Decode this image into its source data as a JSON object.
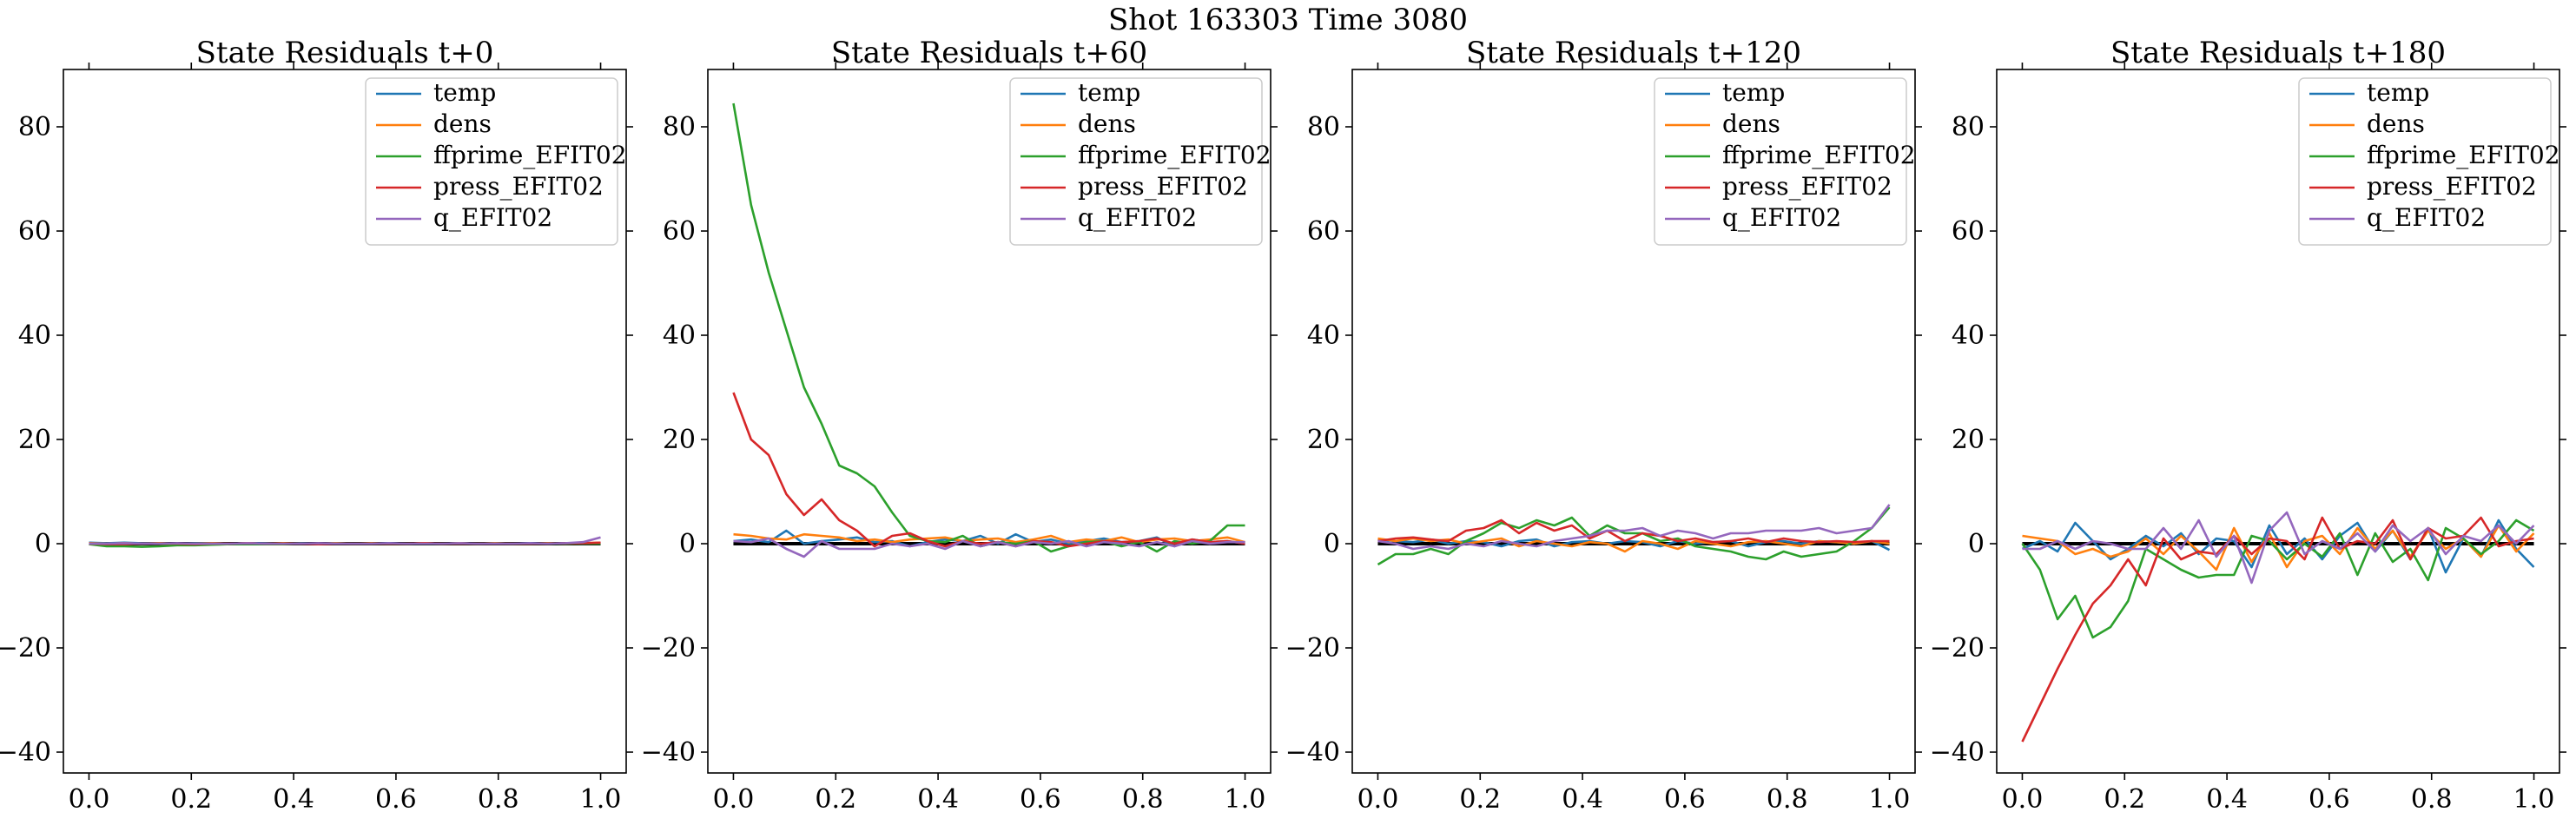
{
  "figure": {
    "suptitle": "Shot 163303   Time 3080"
  },
  "colors": {
    "temp": "#1f77b4",
    "dens": "#ff7f0e",
    "ffprime_EFIT02": "#2ca02c",
    "press_EFIT02": "#d62728",
    "q_EFIT02": "#9467bd",
    "zero": "#000000"
  },
  "chart_data": [
    {
      "type": "line",
      "title": "State Residuals t+0",
      "xlim": [
        -0.05,
        1.05
      ],
      "ylim": [
        -44,
        91
      ],
      "xticks": [
        0.0,
        0.2,
        0.4,
        0.6,
        0.8,
        1.0
      ],
      "xticklabels": [
        "0.0",
        "0.2",
        "0.4",
        "0.6",
        "0.8",
        "1.0"
      ],
      "yticks": [
        -40,
        -20,
        0,
        20,
        40,
        60,
        80
      ],
      "yticklabels": [
        "−40",
        "−20",
        "0",
        "20",
        "40",
        "60",
        "80"
      ],
      "legend": "upper-right",
      "x": [
        0.0,
        0.0345,
        0.069,
        0.1034,
        0.1379,
        0.1724,
        0.2069,
        0.2414,
        0.2759,
        0.3103,
        0.3448,
        0.3793,
        0.4138,
        0.4483,
        0.4828,
        0.5172,
        0.5517,
        0.5862,
        0.6207,
        0.6552,
        0.6897,
        0.7241,
        0.7586,
        0.7931,
        0.8276,
        0.8621,
        0.8966,
        0.931,
        0.9655,
        1.0
      ],
      "series": [
        {
          "name": "temp",
          "values": [
            0.2,
            0.1,
            0.2,
            0.1,
            0.1,
            0.0,
            0.1,
            0.1,
            0.0,
            0.1,
            0.1,
            0.0,
            0.1,
            0.0,
            0.1,
            0.0,
            0.0,
            0.1,
            0.0,
            0.1,
            0.0,
            0.1,
            0.0,
            0.1,
            0.0,
            0.1,
            0.0,
            0.1,
            0.0,
            0.1
          ]
        },
        {
          "name": "dens",
          "values": [
            0.1,
            0.0,
            0.1,
            0.0,
            0.1,
            0.0,
            0.0,
            0.1,
            0.0,
            0.1,
            0.0,
            0.1,
            0.0,
            0.0,
            0.1,
            0.0,
            0.1,
            0.0,
            0.0,
            0.1,
            0.0,
            0.1,
            0.0,
            0.1,
            0.0,
            0.0,
            0.1,
            0.0,
            0.1,
            0.2
          ]
        },
        {
          "name": "ffprime_EFIT02",
          "values": [
            -0.1,
            -0.5,
            -0.5,
            -0.6,
            -0.5,
            -0.3,
            -0.3,
            -0.2,
            -0.1,
            -0.1,
            -0.1,
            -0.1,
            0.0,
            0.0,
            0.0,
            0.0,
            0.0,
            0.0,
            0.0,
            0.0,
            0.0,
            0.0,
            0.0,
            0.0,
            0.0,
            0.0,
            0.0,
            0.0,
            0.0,
            0.0
          ]
        },
        {
          "name": "press_EFIT02",
          "values": [
            0.0,
            -0.1,
            -0.1,
            0.0,
            0.0,
            0.0,
            -0.1,
            0.0,
            0.0,
            0.1,
            0.0,
            0.0,
            0.0,
            -0.1,
            0.0,
            0.0,
            0.0,
            0.0,
            0.0,
            0.1,
            0.0,
            0.0,
            0.0,
            0.0,
            0.0,
            0.0,
            0.0,
            0.1,
            0.1,
            0.2
          ]
        },
        {
          "name": "q_EFIT02",
          "values": [
            0.0,
            0.0,
            0.1,
            0.0,
            0.0,
            0.1,
            0.0,
            0.0,
            0.0,
            0.1,
            0.0,
            0.0,
            0.0,
            0.1,
            0.0,
            0.0,
            0.0,
            0.1,
            0.0,
            0.0,
            0.0,
            0.1,
            0.0,
            0.0,
            0.0,
            0.1,
            0.0,
            0.1,
            0.3,
            1.2
          ]
        }
      ]
    },
    {
      "type": "line",
      "title": "State Residuals t+60",
      "xlim": [
        -0.05,
        1.05
      ],
      "ylim": [
        -44,
        91
      ],
      "xticks": [
        0.0,
        0.2,
        0.4,
        0.6,
        0.8,
        1.0
      ],
      "xticklabels": [
        "0.0",
        "0.2",
        "0.4",
        "0.6",
        "0.8",
        "1.0"
      ],
      "yticks": [
        -40,
        -20,
        0,
        20,
        40,
        60,
        80
      ],
      "yticklabels": [
        "−40",
        "−20",
        "0",
        "20",
        "40",
        "60",
        "80"
      ],
      "legend": "upper-right",
      "x": [
        0.0,
        0.0345,
        0.069,
        0.1034,
        0.1379,
        0.1724,
        0.2069,
        0.2414,
        0.2759,
        0.3103,
        0.3448,
        0.3793,
        0.4138,
        0.4483,
        0.4828,
        0.5172,
        0.5517,
        0.5862,
        0.6207,
        0.6552,
        0.6897,
        0.7241,
        0.7586,
        0.7931,
        0.8276,
        0.8621,
        0.8966,
        0.931,
        0.9655,
        1.0
      ],
      "series": [
        {
          "name": "temp",
          "values": [
            0.5,
            0.8,
            0.3,
            2.5,
            0.0,
            0.5,
            0.8,
            1.2,
            0.3,
            0.5,
            -0.5,
            0.3,
            0.8,
            0.5,
            1.5,
            0.0,
            1.8,
            0.3,
            0.8,
            0.0,
            0.5,
            1.0,
            0.3,
            0.5,
            1.2,
            -0.5,
            0.8,
            0.3,
            0.5,
            0.0
          ]
        },
        {
          "name": "dens",
          "values": [
            1.8,
            1.5,
            1.0,
            0.8,
            1.8,
            1.5,
            1.2,
            0.5,
            0.8,
            0.3,
            0.8,
            1.0,
            1.2,
            0.5,
            0.8,
            1.0,
            0.3,
            0.8,
            1.5,
            0.3,
            0.8,
            0.5,
            1.2,
            0.3,
            0.8,
            1.0,
            0.5,
            0.8,
            1.2,
            0.3
          ]
        },
        {
          "name": "ffprime_EFIT02",
          "values": [
            84.5,
            65.0,
            52.0,
            41.0,
            30.0,
            23.0,
            15.0,
            13.5,
            11.0,
            6.0,
            1.5,
            0.5,
            0.3,
            1.5,
            -0.5,
            0.3,
            0.0,
            0.5,
            -1.5,
            -0.5,
            0.3,
            0.5,
            -0.5,
            0.3,
            -1.5,
            0.5,
            0.0,
            0.5,
            3.5,
            3.5
          ]
        },
        {
          "name": "press_EFIT02",
          "values": [
            29.0,
            20.0,
            17.0,
            9.5,
            5.5,
            8.5,
            4.5,
            2.5,
            -0.5,
            1.5,
            2.0,
            0.5,
            -0.5,
            0.5,
            0.0,
            0.3,
            -0.5,
            0.5,
            0.3,
            -0.5,
            0.0,
            0.5,
            0.3,
            0.5,
            1.0,
            0.0,
            0.8,
            0.3,
            0.5,
            0.0
          ]
        },
        {
          "name": "q_EFIT02",
          "values": [
            0.5,
            0.3,
            1.0,
            -1.0,
            -2.5,
            0.5,
            -1.0,
            -1.0,
            -1.0,
            0.0,
            -0.5,
            0.0,
            -1.0,
            0.5,
            -0.5,
            0.3,
            -0.5,
            0.3,
            0.0,
            0.5,
            -0.5,
            0.3,
            0.0,
            -0.5,
            0.3,
            -0.5,
            0.5,
            0.0,
            0.3,
            0.3
          ]
        }
      ]
    },
    {
      "type": "line",
      "title": "State Residuals t+120",
      "xlim": [
        -0.05,
        1.05
      ],
      "ylim": [
        -44,
        91
      ],
      "xticks": [
        0.0,
        0.2,
        0.4,
        0.6,
        0.8,
        1.0
      ],
      "xticklabels": [
        "0.0",
        "0.2",
        "0.4",
        "0.6",
        "0.8",
        "1.0"
      ],
      "yticks": [
        -40,
        -20,
        0,
        20,
        40,
        60,
        80
      ],
      "yticklabels": [
        "−40",
        "−20",
        "0",
        "20",
        "40",
        "60",
        "80"
      ],
      "legend": "upper-right",
      "x": [
        0.0,
        0.0345,
        0.069,
        0.1034,
        0.1379,
        0.1724,
        0.2069,
        0.2414,
        0.2759,
        0.3103,
        0.3448,
        0.3793,
        0.4138,
        0.4483,
        0.4828,
        0.5172,
        0.5517,
        0.5862,
        0.6207,
        0.6552,
        0.6897,
        0.7241,
        0.7586,
        0.7931,
        0.8276,
        0.8621,
        0.8966,
        0.931,
        0.9655,
        1.0
      ],
      "series": [
        {
          "name": "temp",
          "values": [
            0.8,
            0.5,
            0.3,
            0.8,
            0.0,
            0.5,
            0.3,
            -0.5,
            0.5,
            0.8,
            -0.5,
            0.3,
            0.5,
            0.0,
            0.5,
            0.3,
            -0.5,
            0.5,
            0.0,
            0.3,
            0.5,
            -0.5,
            0.3,
            0.5,
            0.0,
            0.5,
            0.3,
            0.0,
            0.5,
            -1.2
          ]
        },
        {
          "name": "dens",
          "values": [
            1.0,
            0.5,
            1.0,
            0.5,
            0.8,
            0.0,
            0.5,
            1.0,
            -0.5,
            0.5,
            0.0,
            -0.5,
            0.3,
            0.0,
            -1.5,
            0.5,
            0.0,
            -1.0,
            0.5,
            0.0,
            -0.5,
            0.3,
            0.5,
            0.0,
            -0.5,
            0.5,
            0.3,
            0.0,
            0.5,
            0.0
          ]
        },
        {
          "name": "ffprime_EFIT02",
          "values": [
            -4.0,
            -2.0,
            -2.0,
            -1.0,
            -2.0,
            0.5,
            2.0,
            4.0,
            3.0,
            4.5,
            3.5,
            5.0,
            1.5,
            3.5,
            2.0,
            2.0,
            0.5,
            1.0,
            -0.5,
            -1.0,
            -1.5,
            -2.5,
            -3.0,
            -1.5,
            -2.5,
            -2.0,
            -1.5,
            0.5,
            3.0,
            7.0
          ]
        },
        {
          "name": "press_EFIT02",
          "values": [
            0.5,
            1.0,
            1.2,
            0.8,
            0.5,
            2.5,
            3.0,
            4.5,
            2.0,
            4.0,
            2.5,
            3.5,
            1.0,
            2.5,
            0.5,
            2.0,
            1.5,
            0.5,
            1.0,
            0.3,
            0.5,
            1.0,
            0.3,
            1.0,
            0.5,
            0.3,
            0.5,
            0.3,
            0.5,
            0.5
          ]
        },
        {
          "name": "q_EFIT02",
          "values": [
            0.5,
            0.0,
            -1.0,
            -0.5,
            -1.0,
            0.0,
            -0.5,
            0.5,
            0.0,
            -0.5,
            0.5,
            1.0,
            1.5,
            2.5,
            2.5,
            3.0,
            1.5,
            2.5,
            2.0,
            1.0,
            2.0,
            2.0,
            2.5,
            2.5,
            2.5,
            3.0,
            2.0,
            2.5,
            3.0,
            7.5
          ]
        }
      ]
    },
    {
      "type": "line",
      "title": "State Residuals t+180",
      "xlim": [
        -0.05,
        1.05
      ],
      "ylim": [
        -44,
        91
      ],
      "xticks": [
        0.0,
        0.2,
        0.4,
        0.6,
        0.8,
        1.0
      ],
      "xticklabels": [
        "0.0",
        "0.2",
        "0.4",
        "0.6",
        "0.8",
        "1.0"
      ],
      "yticks": [
        -40,
        -20,
        0,
        20,
        40,
        60,
        80
      ],
      "yticklabels": [
        "−40",
        "−20",
        "0",
        "20",
        "40",
        "60",
        "80"
      ],
      "legend": "upper-right",
      "x": [
        0.0,
        0.0345,
        0.069,
        0.1034,
        0.1379,
        0.1724,
        0.2069,
        0.2414,
        0.2759,
        0.3103,
        0.3448,
        0.3793,
        0.4138,
        0.4483,
        0.4828,
        0.5172,
        0.5517,
        0.5862,
        0.6207,
        0.6552,
        0.6897,
        0.7241,
        0.7586,
        0.7931,
        0.8276,
        0.8621,
        0.8966,
        0.931,
        0.9655,
        1.0
      ],
      "series": [
        {
          "name": "temp",
          "values": [
            -1.0,
            0.5,
            -1.5,
            4.0,
            0.5,
            -3.0,
            -1.0,
            1.5,
            -0.5,
            2.0,
            -2.0,
            1.0,
            0.5,
            -4.5,
            3.5,
            -2.0,
            1.0,
            -3.0,
            1.5,
            4.0,
            -1.5,
            2.5,
            -3.0,
            3.0,
            -5.5,
            1.0,
            -2.5,
            4.5,
            -1.0,
            -4.5
          ]
        },
        {
          "name": "dens",
          "values": [
            1.5,
            1.0,
            0.5,
            -2.0,
            -1.0,
            -2.5,
            -1.5,
            1.0,
            -2.0,
            1.5,
            -1.5,
            -5.0,
            3.0,
            -3.5,
            2.0,
            -4.5,
            0.5,
            1.5,
            -2.0,
            3.0,
            -1.0,
            2.5,
            -2.5,
            2.5,
            -1.0,
            1.0,
            -2.5,
            3.5,
            -1.5,
            2.0
          ]
        },
        {
          "name": "ffprime_EFIT02",
          "values": [
            0.0,
            -5.0,
            -14.5,
            -10.0,
            -18.0,
            -16.0,
            -11.0,
            -1.0,
            -3.0,
            -5.0,
            -6.5,
            -6.0,
            -6.0,
            1.5,
            0.5,
            -3.0,
            0.0,
            -2.5,
            2.0,
            -6.0,
            2.0,
            -3.5,
            -1.0,
            -7.0,
            3.0,
            1.0,
            -2.0,
            0.5,
            4.5,
            2.5
          ]
        },
        {
          "name": "press_EFIT02",
          "values": [
            -38.0,
            -31.0,
            -24.0,
            -17.5,
            -11.5,
            -8.0,
            -3.0,
            -8.0,
            1.0,
            -3.0,
            -1.5,
            -2.0,
            1.5,
            -2.0,
            1.0,
            0.5,
            -3.0,
            5.0,
            -1.0,
            0.5,
            0.0,
            4.5,
            -3.0,
            3.0,
            1.0,
            1.5,
            5.0,
            -0.5,
            0.5,
            1.0
          ]
        },
        {
          "name": "q_EFIT02",
          "values": [
            -1.0,
            -1.0,
            0.5,
            -1.0,
            0.5,
            0.0,
            -1.0,
            -1.0,
            3.0,
            -1.0,
            4.5,
            -2.5,
            1.5,
            -7.5,
            2.5,
            6.0,
            -2.0,
            0.5,
            -1.0,
            2.0,
            -1.5,
            3.5,
            0.5,
            3.0,
            -2.0,
            1.5,
            0.5,
            3.5,
            0.0,
            3.5
          ]
        }
      ]
    }
  ]
}
